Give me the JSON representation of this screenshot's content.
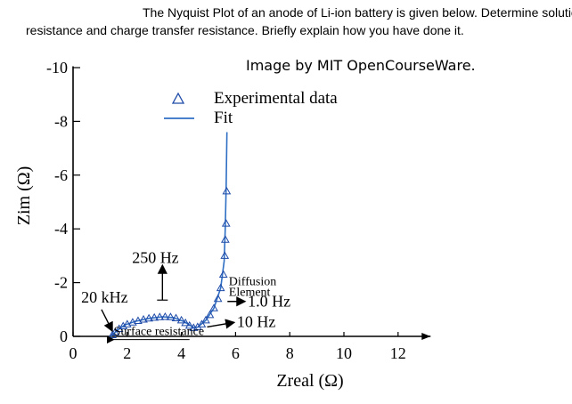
{
  "question": {
    "line1": "The Nyquist Plot of an anode of Li-ion battery is given below. Determine solution",
    "line2": "resistance and charge transfer resistance. Briefly explain how you have done it."
  },
  "credit": "Image by MIT OpenCourseWare.",
  "colors": {
    "marker": "#1e4aa8",
    "fit": "#2f6fc4",
    "axis": "#000000"
  },
  "chart_data": {
    "type": "scatter",
    "title": "",
    "xlabel": "Zreal (Ω)",
    "ylabel": "Zim (Ω)",
    "xlim": [
      0,
      13
    ],
    "ylim": [
      -10,
      0
    ],
    "y_reversed": true,
    "x_ticks": [
      0,
      2,
      4,
      6,
      8,
      10,
      12
    ],
    "y_ticks": [
      0,
      -2,
      -4,
      -6,
      -8,
      -10
    ],
    "grid": false,
    "legend": {
      "position": "top-center",
      "entries": [
        {
          "label": "Experimental data",
          "marker": "triangle"
        },
        {
          "label": "Fit",
          "marker": "line"
        }
      ]
    },
    "series": [
      {
        "name": "Experimental data",
        "style": "markers",
        "points": [
          [
            1.45,
            -0.05
          ],
          [
            1.55,
            -0.15
          ],
          [
            1.7,
            -0.28
          ],
          [
            1.85,
            -0.38
          ],
          [
            2.0,
            -0.45
          ],
          [
            2.2,
            -0.52
          ],
          [
            2.4,
            -0.58
          ],
          [
            2.6,
            -0.63
          ],
          [
            2.8,
            -0.67
          ],
          [
            3.0,
            -0.7
          ],
          [
            3.2,
            -0.72
          ],
          [
            3.4,
            -0.73
          ],
          [
            3.6,
            -0.72
          ],
          [
            3.8,
            -0.68
          ],
          [
            4.0,
            -0.6
          ],
          [
            4.15,
            -0.5
          ],
          [
            4.3,
            -0.4
          ],
          [
            4.45,
            -0.32
          ],
          [
            4.6,
            -0.35
          ],
          [
            4.75,
            -0.45
          ],
          [
            4.9,
            -0.6
          ],
          [
            5.05,
            -0.8
          ],
          [
            5.2,
            -1.05
          ],
          [
            5.35,
            -1.4
          ],
          [
            5.45,
            -1.8
          ],
          [
            5.55,
            -2.3
          ],
          [
            5.6,
            -3.0
          ],
          [
            5.62,
            -3.6
          ],
          [
            5.65,
            -4.2
          ],
          [
            5.67,
            -5.4
          ]
        ]
      },
      {
        "name": "Fit",
        "style": "line",
        "points": [
          [
            1.4,
            0.0
          ],
          [
            1.6,
            -0.2
          ],
          [
            1.9,
            -0.42
          ],
          [
            2.3,
            -0.56
          ],
          [
            2.8,
            -0.67
          ],
          [
            3.3,
            -0.73
          ],
          [
            3.7,
            -0.7
          ],
          [
            4.1,
            -0.55
          ],
          [
            4.45,
            -0.33
          ],
          [
            4.6,
            -0.34
          ],
          [
            4.9,
            -0.6
          ],
          [
            5.2,
            -1.05
          ],
          [
            5.45,
            -1.8
          ],
          [
            5.58,
            -2.8
          ],
          [
            5.62,
            -4.0
          ],
          [
            5.65,
            -5.5
          ],
          [
            5.68,
            -7.6
          ]
        ]
      }
    ],
    "annotations": [
      {
        "id": "surface",
        "text": "Surface resistance",
        "x": 4.3,
        "y": -0.02,
        "arrow_to": [
          1.45,
          -0.05
        ]
      },
      {
        "id": "f250",
        "text": "250 Hz",
        "x": 3.0,
        "y": -3.0,
        "arrow_to": [
          3.0,
          -1.7
        ]
      },
      {
        "id": "f20k",
        "text": "20 kHz",
        "x": 0.3,
        "y": -1.45,
        "arrow_to": [
          1.45,
          -0.1
        ]
      },
      {
        "id": "diffusion1",
        "text": "Diffusion",
        "x": 5.65,
        "y": -2.5
      },
      {
        "id": "diffusion2",
        "text": "Element",
        "x": 5.65,
        "y": -2.1
      },
      {
        "id": "f1hz",
        "text": "1.0 Hz",
        "x": 6.1,
        "y": -1.25,
        "arrow_from": [
          5.6,
          -1.25
        ]
      },
      {
        "id": "f10hz",
        "text": "10 Hz",
        "x": 5.9,
        "y": -0.55,
        "arrow_from": [
          4.9,
          -0.35
        ]
      }
    ]
  }
}
